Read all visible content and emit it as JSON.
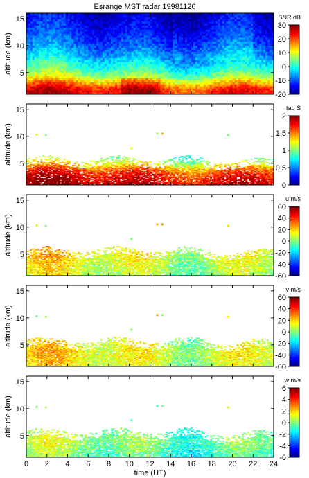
{
  "title": "Esrange MST radar 19981126",
  "chart_data": [
    {
      "type": "heatmap",
      "title": "Esrange MST radar 19981126",
      "ylabel": "altitude (km)",
      "xlabel": "",
      "xlim": [
        0,
        24
      ],
      "ylim": [
        1,
        16
      ],
      "yticks": [
        5,
        10,
        15
      ],
      "colorbar": {
        "label": "SNR dB",
        "range": [
          -20,
          30
        ],
        "ticks": [
          -20,
          -10,
          0,
          10,
          20,
          30
        ]
      },
      "profile": {
        "altitude_km": [
          1,
          2,
          3,
          4,
          5,
          6,
          8,
          10,
          12,
          14,
          16
        ],
        "value": [
          24,
          22,
          15,
          8,
          3,
          0,
          -6,
          -10,
          -13,
          -15,
          -17
        ]
      },
      "coverage": "full"
    },
    {
      "type": "heatmap",
      "title": "",
      "ylabel": "altitude (km)",
      "xlabel": "",
      "xlim": [
        0,
        24
      ],
      "ylim": [
        1,
        16
      ],
      "yticks": [
        5,
        10,
        15
      ],
      "colorbar": {
        "label": "tau S",
        "range": [
          0,
          2
        ],
        "ticks": [
          0,
          0.5,
          1,
          1.5,
          2
        ]
      },
      "profile": {
        "altitude_km": [
          1,
          2,
          3,
          4,
          5,
          6
        ],
        "value": [
          1.9,
          1.8,
          1.7,
          1.5,
          1.2,
          1.0
        ]
      },
      "coverage": "low"
    },
    {
      "type": "heatmap",
      "title": "",
      "ylabel": "altitude (km)",
      "xlabel": "",
      "xlim": [
        0,
        24
      ],
      "ylim": [
        1,
        16
      ],
      "yticks": [
        5,
        10,
        15
      ],
      "colorbar": {
        "label": "u m/s",
        "range": [
          -60,
          60
        ],
        "ticks": [
          -60,
          -40,
          -20,
          0,
          20,
          40,
          60
        ]
      },
      "profile": {
        "altitude_km": [
          1,
          2,
          3,
          4,
          5,
          6
        ],
        "value": [
          5,
          8,
          10,
          12,
          14,
          16
        ]
      },
      "coverage": "low"
    },
    {
      "type": "heatmap",
      "title": "",
      "ylabel": "altitude (km)",
      "xlabel": "",
      "xlim": [
        0,
        24
      ],
      "ylim": [
        1,
        16
      ],
      "yticks": [
        5,
        10,
        15
      ],
      "colorbar": {
        "label": "v m/s",
        "range": [
          -60,
          60
        ],
        "ticks": [
          -60,
          -40,
          -20,
          0,
          20,
          40,
          60
        ]
      },
      "profile": {
        "altitude_km": [
          1,
          2,
          3,
          4,
          5,
          6
        ],
        "value": [
          10,
          12,
          14,
          13,
          12,
          10
        ]
      },
      "coverage": "low"
    },
    {
      "type": "heatmap",
      "title": "",
      "ylabel": "altitude (km)",
      "xlabel": "time (UT)",
      "xlim": [
        0,
        24
      ],
      "ylim": [
        1,
        16
      ],
      "yticks": [
        5,
        10,
        15
      ],
      "xticks": [
        0,
        2,
        4,
        6,
        8,
        10,
        12,
        14,
        16,
        18,
        20,
        22,
        24
      ],
      "colorbar": {
        "label": "w m/s",
        "range": [
          -6,
          6
        ],
        "ticks": [
          -6,
          -4,
          -2,
          0,
          2,
          4,
          6
        ]
      },
      "profile": {
        "altitude_km": [
          1,
          2,
          3,
          4,
          5,
          6
        ],
        "value": [
          -0.5,
          -0.3,
          0,
          0.2,
          0,
          -0.2
        ]
      },
      "coverage": "low"
    }
  ]
}
